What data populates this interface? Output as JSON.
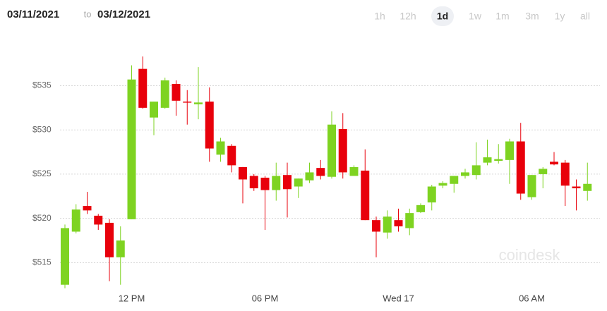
{
  "header": {
    "from": "03/11/2021",
    "separator": "to",
    "to": "03/12/2021",
    "ranges": [
      "1h",
      "12h",
      "1d",
      "1w",
      "1m",
      "3m",
      "1y",
      "all"
    ],
    "selected_range": "1d"
  },
  "watermark": "coindesk",
  "chart_data": {
    "type": "candlestick",
    "categories": [
      null,
      null,
      null,
      null,
      null,
      null,
      "12 PM",
      null,
      null,
      null,
      null,
      null,
      null,
      null,
      null,
      null,
      null,
      null,
      "06 PM",
      null,
      null,
      null,
      null,
      null,
      null,
      null,
      null,
      null,
      null,
      null,
      "Wed 17",
      null,
      null,
      null,
      null,
      null,
      null,
      null,
      null,
      null,
      null,
      null,
      "06 AM",
      null,
      null,
      null,
      null,
      null
    ],
    "open": [
      512.5,
      518.5,
      521.4,
      520.3,
      519.5,
      515.6,
      519.9,
      536.9,
      531.4,
      532.5,
      535.2,
      533.2,
      532.9,
      533.2,
      527.2,
      528.2,
      525.8,
      524.8,
      524.6,
      523.2,
      524.9,
      523.6,
      524.3,
      525.7,
      524.7,
      530.1,
      524.8,
      525.4,
      519.8,
      518.4,
      519.8,
      518.9,
      520.7,
      521.8,
      523.7,
      523.9,
      524.8,
      524.9,
      526.3,
      526.5,
      526.6,
      528.7,
      522.4,
      525.0,
      526.4,
      526.3,
      523.6,
      523.1
    ],
    "high": [
      519.3,
      521.6,
      523.0,
      520.5,
      519.9,
      519.1,
      537.3,
      538.3,
      533.2,
      535.9,
      535.6,
      534.5,
      537.1,
      534.8,
      529.1,
      528.4,
      525.8,
      525.0,
      524.8,
      526.3,
      526.3,
      524.5,
      526.3,
      526.6,
      532.1,
      531.9,
      526.0,
      527.8,
      520.2,
      520.9,
      521.1,
      521.1,
      521.7,
      523.8,
      524.2,
      524.8,
      525.6,
      528.6,
      528.9,
      528.4,
      529.0,
      530.8,
      524.9,
      525.8,
      527.5,
      526.6,
      524.4,
      526.3
    ],
    "low": [
      512.1,
      518.3,
      520.5,
      518.7,
      512.9,
      512.5,
      519.9,
      532.4,
      529.4,
      532.4,
      531.6,
      530.6,
      531.2,
      526.4,
      526.4,
      525.2,
      521.7,
      523.1,
      518.7,
      522.0,
      520.1,
      522.3,
      524.0,
      524.4,
      524.5,
      524.5,
      525.0,
      519.8,
      515.6,
      517.7,
      518.5,
      518.1,
      520.6,
      520.9,
      523.4,
      522.9,
      524.5,
      524.4,
      526.0,
      526.2,
      523.9,
      522.1,
      522.1,
      523.4,
      526.0,
      521.4,
      520.9,
      522.0
    ],
    "close": [
      518.9,
      521.0,
      520.9,
      519.3,
      515.6,
      517.5,
      535.7,
      532.5,
      533.2,
      535.6,
      533.3,
      533.1,
      533.1,
      527.9,
      528.7,
      526.0,
      524.4,
      523.4,
      523.2,
      524.8,
      523.3,
      524.5,
      525.2,
      524.8,
      530.6,
      525.2,
      525.8,
      519.8,
      518.5,
      520.2,
      519.1,
      520.6,
      521.5,
      523.6,
      524.0,
      524.8,
      525.2,
      526.0,
      526.9,
      526.7,
      528.7,
      522.8,
      524.9,
      525.6,
      526.1,
      523.7,
      523.4,
      523.9
    ],
    "up_color": "#7ed321",
    "down_color": "#e8000b",
    "ylim": [
      512,
      540.7
    ],
    "yticks": [
      {
        "value": 515,
        "label": "$515"
      },
      {
        "value": 520,
        "label": "$520"
      },
      {
        "value": 525,
        "label": "$525"
      },
      {
        "value": 530,
        "label": "$530"
      },
      {
        "value": 535,
        "label": "$535"
      }
    ],
    "grid": true
  }
}
